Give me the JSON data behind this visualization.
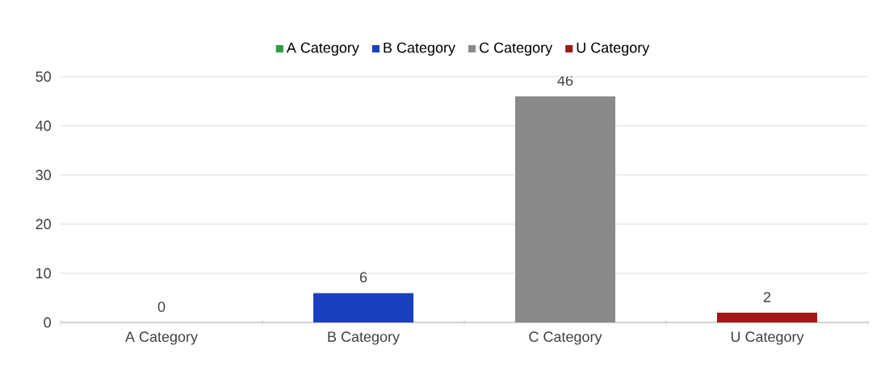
{
  "chart_data": {
    "type": "bar",
    "categories": [
      "A Category",
      "B Category",
      "C Category",
      "U Category"
    ],
    "series": [
      {
        "name": "A Category",
        "color": "#2e9e3e",
        "values": [
          0,
          null,
          null,
          null
        ]
      },
      {
        "name": "B Category",
        "color": "#1a3fbf",
        "values": [
          null,
          6,
          null,
          null
        ]
      },
      {
        "name": "C Category",
        "color": "#8a8a8a",
        "values": [
          null,
          null,
          46,
          null
        ]
      },
      {
        "name": "U Category",
        "color": "#a01818",
        "values": [
          null,
          null,
          null,
          2
        ]
      }
    ],
    "ylim": [
      0,
      50
    ],
    "yticks": [
      0,
      10,
      20,
      30,
      40,
      50
    ],
    "grid": "y",
    "legend": "top",
    "data_labels": true
  }
}
